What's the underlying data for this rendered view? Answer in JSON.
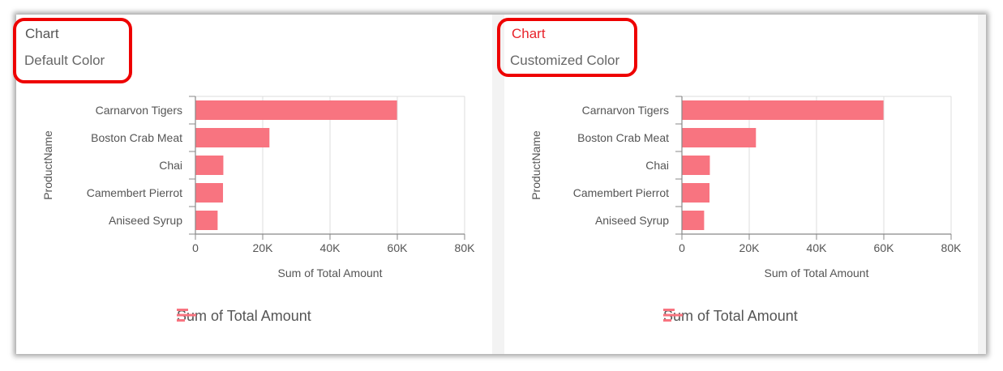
{
  "panels": [
    {
      "title": "Chart",
      "subtitle": "Default Color",
      "title_color": "#555555"
    },
    {
      "title": "Chart",
      "subtitle": "Customized Color",
      "title_color": "#e8222a"
    }
  ],
  "colors": {
    "bar": "#f87480",
    "highlight": "#ee0000"
  },
  "chart_data": [
    {
      "type": "bar",
      "orientation": "horizontal",
      "categories": [
        "Carnarvon Tigers",
        "Boston Crab Meat",
        "Chai",
        "Camembert Pierrot",
        "Aniseed Syrup"
      ],
      "series": [
        {
          "name": "Sum of Total Amount",
          "values": [
            59900,
            22000,
            8300,
            8200,
            6600
          ]
        }
      ],
      "xlabel": "Sum of Total Amount",
      "ylabel": "ProductName",
      "xlim": [
        0,
        80000
      ],
      "xticks": [
        "0",
        "20K",
        "40K",
        "60K",
        "80K"
      ],
      "grid": true,
      "legend": "bottom"
    },
    {
      "type": "bar",
      "orientation": "horizontal",
      "categories": [
        "Carnarvon Tigers",
        "Boston Crab Meat",
        "Chai",
        "Camembert Pierrot",
        "Aniseed Syrup"
      ],
      "series": [
        {
          "name": "Sum of Total Amount",
          "values": [
            59900,
            22000,
            8300,
            8200,
            6600
          ]
        }
      ],
      "xlabel": "Sum of Total Amount",
      "ylabel": "ProductName",
      "xlim": [
        0,
        80000
      ],
      "xticks": [
        "0",
        "20K",
        "40K",
        "60K",
        "80K"
      ],
      "grid": true,
      "legend": "bottom"
    }
  ]
}
